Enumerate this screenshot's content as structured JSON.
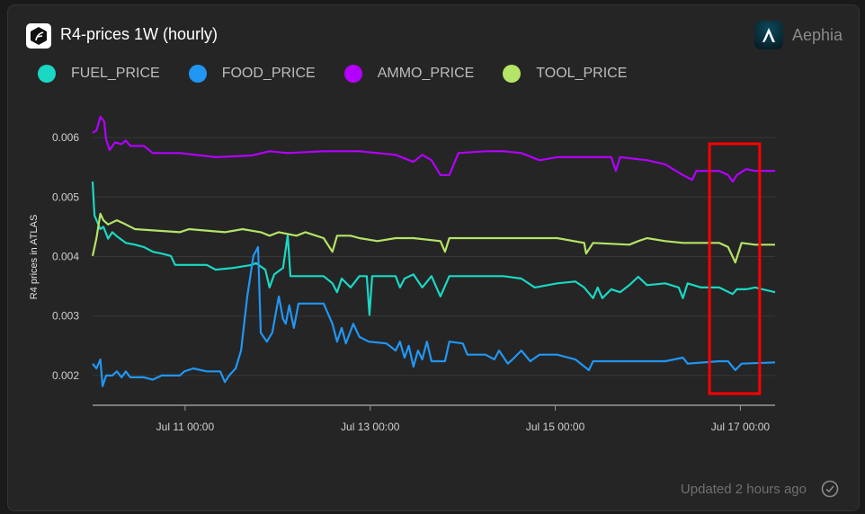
{
  "header": {
    "title": "R4-prices 1W (hourly)",
    "brand": "Aephia"
  },
  "footer": {
    "status": "Updated 2 hours ago"
  },
  "chart_data": {
    "type": "line",
    "title": "R4-prices 1W (hourly)",
    "xlabel": "",
    "ylabel": "R4 prices in ATLAS",
    "x_unit": "hours since Jul 10 00:00",
    "xlim": [
      0,
      177
    ],
    "ylim": [
      0.0015,
      0.0065
    ],
    "yticks": [
      0.002,
      0.003,
      0.004,
      0.005,
      0.006
    ],
    "ytick_labels": [
      "0.002",
      "0.003",
      "0.004",
      "0.005",
      "0.006"
    ],
    "xticks": [
      24,
      72,
      120,
      168
    ],
    "xtick_labels": [
      "Jul 11 00:00",
      "Jul 13 00:00",
      "Jul 15 00:00",
      "Jul 17 00:00"
    ],
    "grid": true,
    "legend": "top-left",
    "highlight": {
      "x_range": [
        160,
        173
      ],
      "color": "#ff0000"
    },
    "series": [
      {
        "name": "FUEL_PRICE",
        "color": "#1ad8c3",
        "points": [
          [
            0,
            0.00526
          ],
          [
            0.5,
            0.00469
          ],
          [
            2,
            0.00446
          ],
          [
            2.8,
            0.0045
          ],
          [
            4,
            0.0043
          ],
          [
            5.1,
            0.00441
          ],
          [
            6.3,
            0.00434
          ],
          [
            8.6,
            0.00423
          ],
          [
            11,
            0.0042
          ],
          [
            13.3,
            0.00416
          ],
          [
            15.6,
            0.00408
          ],
          [
            17.9,
            0.00405
          ],
          [
            20.3,
            0.00401
          ],
          [
            21.4,
            0.00386
          ],
          [
            29.6,
            0.00386
          ],
          [
            31.9,
            0.00378
          ],
          [
            36.6,
            0.00381
          ],
          [
            41.3,
            0.00386
          ],
          [
            42.4,
            0.00389
          ],
          [
            44.8,
            0.00378
          ],
          [
            45.9,
            0.00348
          ],
          [
            47.1,
            0.0037
          ],
          [
            49.4,
            0.00381
          ],
          [
            50.6,
            0.00436
          ],
          [
            51.3,
            0.00367
          ],
          [
            59.9,
            0.00367
          ],
          [
            62.2,
            0.00355
          ],
          [
            63.4,
            0.0034
          ],
          [
            64.6,
            0.00363
          ],
          [
            66.9,
            0.00348
          ],
          [
            69.2,
            0.00367
          ],
          [
            71.1,
            0.00367
          ],
          [
            71.8,
            0.00302
          ],
          [
            72.5,
            0.00367
          ],
          [
            78.6,
            0.00367
          ],
          [
            79.7,
            0.00348
          ],
          [
            80.9,
            0.00363
          ],
          [
            83.2,
            0.0037
          ],
          [
            85.5,
            0.00348
          ],
          [
            87.9,
            0.00367
          ],
          [
            90.2,
            0.00333
          ],
          [
            92.5,
            0.00367
          ],
          [
            106.5,
            0.00367
          ],
          [
            111.2,
            0.00363
          ],
          [
            114.7,
            0.00348
          ],
          [
            120.5,
            0.00355
          ],
          [
            125.2,
            0.00358
          ],
          [
            127.5,
            0.00348
          ],
          [
            129.8,
            0.0033
          ],
          [
            131,
            0.00348
          ],
          [
            132.2,
            0.0033
          ],
          [
            134.5,
            0.00345
          ],
          [
            136.8,
            0.0034
          ],
          [
            139.2,
            0.00352
          ],
          [
            141.5,
            0.00366
          ],
          [
            143.8,
            0.00352
          ],
          [
            148.5,
            0.00355
          ],
          [
            152,
            0.00348
          ],
          [
            153.1,
            0.0033
          ],
          [
            154.3,
            0.00355
          ],
          [
            157.8,
            0.00348
          ],
          [
            162.5,
            0.00348
          ],
          [
            166,
            0.00337
          ],
          [
            167.1,
            0.00345
          ],
          [
            169.5,
            0.00345
          ],
          [
            171.8,
            0.00348
          ],
          [
            177,
            0.0034
          ]
        ]
      },
      {
        "name": "FOOD_PRICE",
        "color": "#2196f3",
        "points": [
          [
            0,
            0.0022
          ],
          [
            1,
            0.00212
          ],
          [
            2,
            0.00227
          ],
          [
            2.6,
            0.00182
          ],
          [
            3.5,
            0.002
          ],
          [
            5.1,
            0.002
          ],
          [
            6.3,
            0.00207
          ],
          [
            7.5,
            0.00197
          ],
          [
            8.6,
            0.00207
          ],
          [
            9.8,
            0.00197
          ],
          [
            13.3,
            0.00197
          ],
          [
            15.6,
            0.00193
          ],
          [
            17.9,
            0.002
          ],
          [
            22.6,
            0.002
          ],
          [
            23.8,
            0.00207
          ],
          [
            26.1,
            0.00212
          ],
          [
            29.6,
            0.00207
          ],
          [
            33.1,
            0.00207
          ],
          [
            34.3,
            0.00189
          ],
          [
            35.4,
            0.002
          ],
          [
            37.1,
            0.00212
          ],
          [
            38.5,
            0.00242
          ],
          [
            40.1,
            0.00333
          ],
          [
            41.7,
            0.00401
          ],
          [
            42.9,
            0.00416
          ],
          [
            43.6,
            0.00272
          ],
          [
            45.2,
            0.00257
          ],
          [
            46.6,
            0.00272
          ],
          [
            48.3,
            0.00333
          ],
          [
            49.4,
            0.00295
          ],
          [
            50.1,
            0.00287
          ],
          [
            51.0,
            0.00318
          ],
          [
            52.2,
            0.0028
          ],
          [
            53.4,
            0.00321
          ],
          [
            59.9,
            0.00321
          ],
          [
            62.2,
            0.00287
          ],
          [
            63.4,
            0.00257
          ],
          [
            64.6,
            0.0028
          ],
          [
            65.7,
            0.00254
          ],
          [
            67.6,
            0.00287
          ],
          [
            69.2,
            0.00265
          ],
          [
            71.6,
            0.00257
          ],
          [
            76.2,
            0.00254
          ],
          [
            78.6,
            0.00242
          ],
          [
            79.7,
            0.00257
          ],
          [
            80.9,
            0.0023
          ],
          [
            82.0,
            0.0025
          ],
          [
            83.2,
            0.00215
          ],
          [
            84.4,
            0.00242
          ],
          [
            85.5,
            0.00227
          ],
          [
            86.7,
            0.00257
          ],
          [
            87.9,
            0.00224
          ],
          [
            91.4,
            0.00224
          ],
          [
            92.5,
            0.00257
          ],
          [
            96.0,
            0.00254
          ],
          [
            97.2,
            0.00235
          ],
          [
            101.9,
            0.00235
          ],
          [
            104.2,
            0.00227
          ],
          [
            105.4,
            0.00242
          ],
          [
            107.7,
            0.0022
          ],
          [
            108.9,
            0.00227
          ],
          [
            111.2,
            0.00242
          ],
          [
            113.5,
            0.00224
          ],
          [
            115.9,
            0.00235
          ],
          [
            120.5,
            0.00235
          ],
          [
            125.2,
            0.00227
          ],
          [
            128.7,
            0.00209
          ],
          [
            129.8,
            0.00224
          ],
          [
            139.2,
            0.00224
          ],
          [
            148.5,
            0.00224
          ],
          [
            153.1,
            0.0023
          ],
          [
            154.3,
            0.0022
          ],
          [
            162.5,
            0.00224
          ],
          [
            164.8,
            0.00224
          ],
          [
            166.7,
            0.00209
          ],
          [
            168.3,
            0.0022
          ],
          [
            177,
            0.00222
          ]
        ]
      },
      {
        "name": "AMMO_PRICE",
        "color": "#b300ff",
        "points": [
          [
            0,
            0.00608
          ],
          [
            1,
            0.00612
          ],
          [
            2,
            0.00635
          ],
          [
            3,
            0.00627
          ],
          [
            3.5,
            0.00597
          ],
          [
            4.4,
            0.00579
          ],
          [
            5.8,
            0.00592
          ],
          [
            7.5,
            0.00589
          ],
          [
            8.6,
            0.00595
          ],
          [
            9.8,
            0.00586
          ],
          [
            13.3,
            0.00586
          ],
          [
            15.6,
            0.00574
          ],
          [
            22.6,
            0.00574
          ],
          [
            31.9,
            0.00567
          ],
          [
            41.3,
            0.0057
          ],
          [
            45.9,
            0.00577
          ],
          [
            50.6,
            0.00574
          ],
          [
            59.9,
            0.00577
          ],
          [
            69.2,
            0.00577
          ],
          [
            78.6,
            0.00571
          ],
          [
            83.2,
            0.00559
          ],
          [
            85.5,
            0.00571
          ],
          [
            87.9,
            0.00562
          ],
          [
            90.2,
            0.00537
          ],
          [
            92.5,
            0.00537
          ],
          [
            94.9,
            0.00574
          ],
          [
            101.9,
            0.00577
          ],
          [
            106.5,
            0.00577
          ],
          [
            111.2,
            0.00574
          ],
          [
            115.9,
            0.00562
          ],
          [
            120.5,
            0.00567
          ],
          [
            129.8,
            0.00567
          ],
          [
            134.5,
            0.00567
          ],
          [
            135.7,
            0.00544
          ],
          [
            136.8,
            0.00567
          ],
          [
            143.8,
            0.00562
          ],
          [
            148.5,
            0.00555
          ],
          [
            153.1,
            0.00537
          ],
          [
            155.5,
            0.00529
          ],
          [
            156.6,
            0.00544
          ],
          [
            162.5,
            0.00544
          ],
          [
            164.8,
            0.00537
          ],
          [
            166,
            0.00526
          ],
          [
            167.1,
            0.00537
          ],
          [
            169.5,
            0.00547
          ],
          [
            171.8,
            0.00544
          ],
          [
            177,
            0.00544
          ]
        ]
      },
      {
        "name": "TOOL_PRICE",
        "color": "#b5e467",
        "points": [
          [
            0,
            0.00401
          ],
          [
            1,
            0.00431
          ],
          [
            2,
            0.00472
          ],
          [
            2.8,
            0.00461
          ],
          [
            4,
            0.00454
          ],
          [
            6.3,
            0.00461
          ],
          [
            8.6,
            0.00454
          ],
          [
            11,
            0.00446
          ],
          [
            22.6,
            0.00441
          ],
          [
            25,
            0.00446
          ],
          [
            34.3,
            0.00441
          ],
          [
            38.9,
            0.00446
          ],
          [
            43.6,
            0.00441
          ],
          [
            45.9,
            0.00435
          ],
          [
            48.3,
            0.00441
          ],
          [
            52.9,
            0.00435
          ],
          [
            55.2,
            0.00441
          ],
          [
            59.9,
            0.00431
          ],
          [
            62.2,
            0.00408
          ],
          [
            63.4,
            0.00435
          ],
          [
            66.9,
            0.00435
          ],
          [
            69.2,
            0.00431
          ],
          [
            73.9,
            0.00426
          ],
          [
            78.6,
            0.00431
          ],
          [
            83.2,
            0.00431
          ],
          [
            90.2,
            0.00426
          ],
          [
            91.4,
            0.00408
          ],
          [
            92.5,
            0.00431
          ],
          [
            106.5,
            0.00431
          ],
          [
            120.5,
            0.00431
          ],
          [
            127.5,
            0.00423
          ],
          [
            128,
            0.00405
          ],
          [
            129.8,
            0.00423
          ],
          [
            139.2,
            0.0042
          ],
          [
            141.5,
            0.00426
          ],
          [
            143.8,
            0.00431
          ],
          [
            148.5,
            0.00426
          ],
          [
            153.1,
            0.00423
          ],
          [
            162.5,
            0.00423
          ],
          [
            164.8,
            0.00416
          ],
          [
            166.7,
            0.0039
          ],
          [
            168.3,
            0.00423
          ],
          [
            171.8,
            0.0042
          ],
          [
            177,
            0.0042
          ]
        ]
      }
    ]
  }
}
